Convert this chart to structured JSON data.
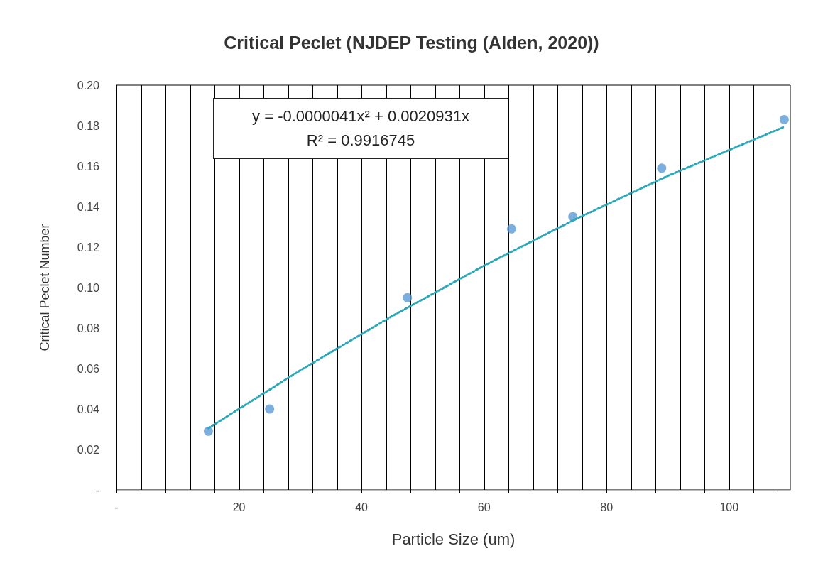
{
  "chart_data": {
    "type": "scatter",
    "title": "Critical Peclet (NJDEP Testing (Alden, 2020))",
    "xlabel": "Particle Size (um)",
    "ylabel": "Critical Peclet Number",
    "series": [
      {
        "color": "#5b9bd5",
        "marker": "circle",
        "x": [
          15,
          25,
          47.5,
          64.5,
          74.5,
          89,
          109
        ],
        "values": [
          0.029,
          0.04,
          0.095,
          0.129,
          0.135,
          0.159,
          0.183
        ]
      },
      {
        "type": "line",
        "color": "#2aa8b8",
        "marker": "none",
        "line_style": "dotted",
        "x": [
          15,
          30,
          45,
          60,
          75,
          90,
          109
        ],
        "values": [
          0.0305,
          0.0591,
          0.0859,
          0.1108,
          0.1339,
          0.1552,
          0.1794
        ]
      }
    ],
    "annotations": [
      "y = -0.0000041x² + 0.0020931x",
      "R² = 0.9916745"
    ],
    "xlim": [
      0,
      110
    ],
    "xticks": [
      {
        "value": 0,
        "label": "-"
      },
      {
        "value": 4,
        "label": null
      },
      {
        "value": 8,
        "label": null
      },
      {
        "value": 12,
        "label": null
      },
      {
        "value": 16,
        "label": null
      },
      20,
      {
        "value": 24,
        "label": null
      },
      {
        "value": 28,
        "label": null
      },
      {
        "value": 32,
        "label": null
      },
      {
        "value": 36,
        "label": null
      },
      40,
      {
        "value": 44,
        "label": null
      },
      {
        "value": 48,
        "label": null
      },
      {
        "value": 52,
        "label": null
      },
      {
        "value": 56,
        "label": null
      },
      60,
      {
        "value": 64,
        "label": null
      },
      {
        "value": 68,
        "label": null
      },
      {
        "value": 72,
        "label": null
      },
      {
        "value": 76,
        "label": null
      },
      80,
      {
        "value": 84,
        "label": null
      },
      {
        "value": 88,
        "label": null
      },
      {
        "value": 92,
        "label": null
      },
      {
        "value": 96,
        "label": null
      },
      100,
      {
        "value": 104,
        "label": null
      },
      {
        "value": 108,
        "label": null
      }
    ],
    "ylim": [
      0,
      0.2
    ],
    "yticks": [
      {
        "value": 0,
        "label": "-"
      },
      0.02,
      0.04,
      0.06,
      0.08,
      {
        "value": 0.1,
        "label": "0.10"
      },
      0.12,
      0.14,
      0.16,
      0.18,
      {
        "value": 0.2,
        "label": "0.20"
      }
    ],
    "grid": "x"
  }
}
